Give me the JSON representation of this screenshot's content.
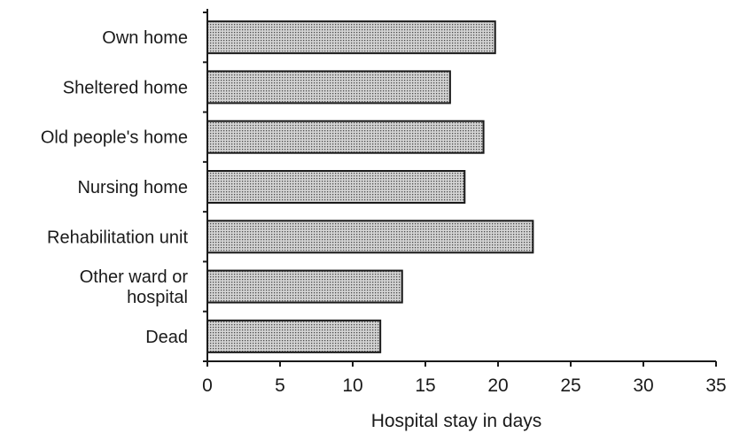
{
  "chart_data": {
    "type": "bar",
    "orientation": "horizontal",
    "categories": [
      [
        "Own home"
      ],
      [
        "Sheltered home"
      ],
      [
        "Old people's home"
      ],
      [
        "Nursing home"
      ],
      [
        "Rehabilitation unit"
      ],
      [
        "Other ward or",
        "hospital"
      ],
      [
        "Dead"
      ]
    ],
    "values": [
      19.8,
      16.7,
      19.0,
      17.7,
      22.4,
      13.4,
      11.9
    ],
    "title": "",
    "xlabel": "Hospital stay in days",
    "ylabel": "",
    "xlim": [
      0,
      35
    ],
    "xticks": [
      0,
      5,
      10,
      15,
      20,
      25,
      30,
      35
    ],
    "grid": false,
    "legend": "none",
    "bar_fill": "dotted-gray",
    "colors": {
      "bar_fill_base": "#d4d4d4",
      "bar_dot": "#4a4a4a",
      "stroke": "#1a1a1a"
    }
  }
}
